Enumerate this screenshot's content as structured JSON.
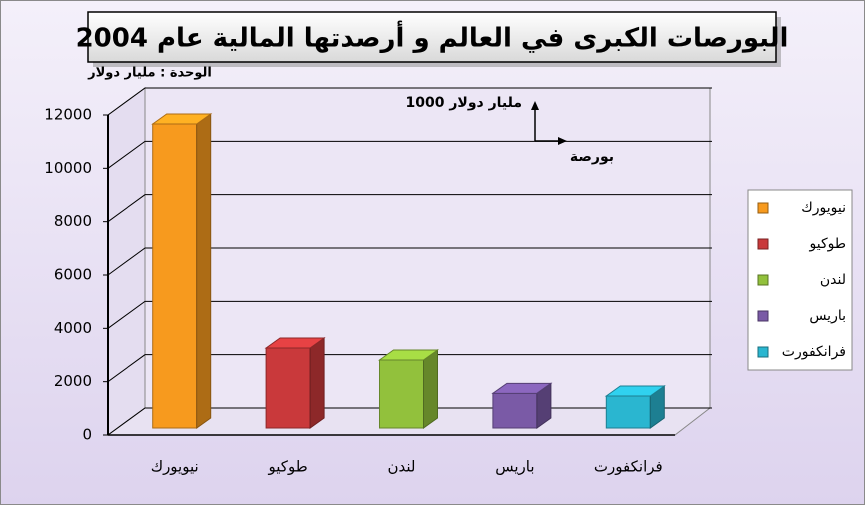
{
  "chart_data": {
    "type": "bar",
    "title": "البورصات الكبرى في العالم و أرصدتها المالية عام 2004",
    "unit_label": "الوحدة : مليار دولار",
    "annotations": [
      "1000 مليار دولار",
      "بورصة"
    ],
    "categories": [
      "نيويورك",
      "طوكيو",
      "لندن",
      "باريس",
      "فرانكفورت"
    ],
    "values": [
      11400,
      3000,
      2550,
      1300,
      1200
    ],
    "colors": [
      "#f79a1e",
      "#c9393b",
      "#92c13c",
      "#7a5aa6",
      "#2ab6d0"
    ],
    "ylim": [
      0,
      12000
    ],
    "yticks": [
      0,
      2000,
      4000,
      6000,
      8000,
      10000,
      12000
    ],
    "grid": true,
    "legend": "right"
  }
}
